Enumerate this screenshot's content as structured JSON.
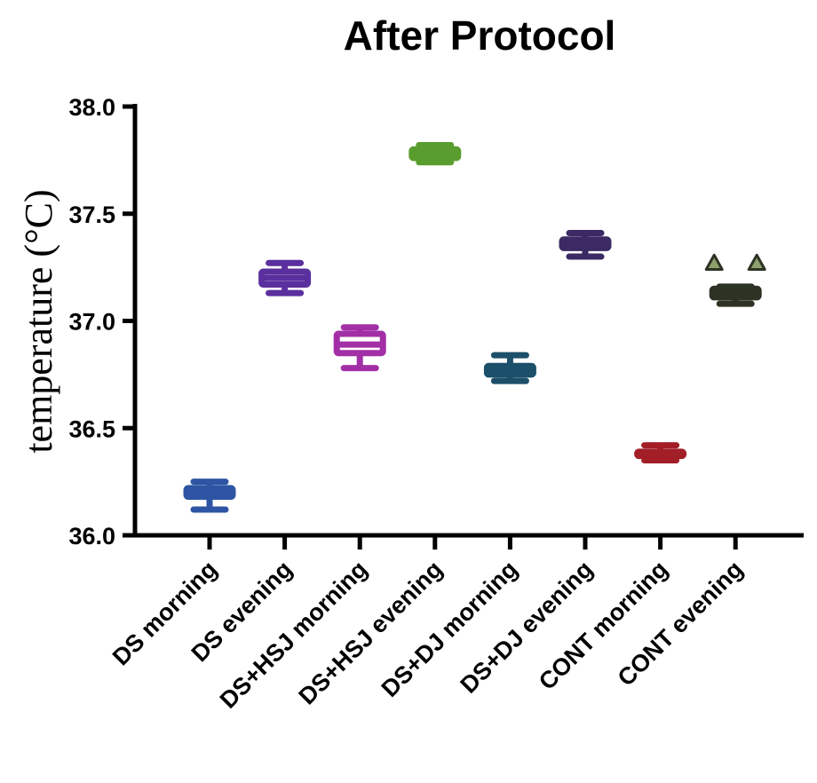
{
  "chart_data": {
    "type": "box",
    "title": "After Protocol",
    "ylabel": "temperature (°C)",
    "xlabel": "",
    "ylim": [
      36.0,
      38.0
    ],
    "yticks": [
      "36.0",
      "36.5",
      "37.0",
      "37.5",
      "38.0"
    ],
    "grid": false,
    "categories": [
      "DS morning",
      "DS evening",
      "DS+HSJ morning",
      "DS+HSJ evening",
      "DS+DJ morning",
      "DS+DJ evening",
      "CONT morning",
      "CONT evening"
    ],
    "boxes": [
      {
        "category": "DS morning",
        "color": "#2e55a3",
        "min": 36.12,
        "q1": 36.18,
        "median": 36.2,
        "q3": 36.22,
        "max": 36.25
      },
      {
        "category": "DS evening",
        "color": "#5a2f9e",
        "min": 37.13,
        "q1": 37.17,
        "median": 37.2,
        "q3": 37.23,
        "max": 37.27
      },
      {
        "category": "DS+HSJ morning",
        "color": "#a22fa6",
        "min": 36.78,
        "q1": 36.85,
        "median": 36.89,
        "q3": 36.94,
        "max": 36.97
      },
      {
        "category": "DS+HSJ evening",
        "color": "#5a9d2f",
        "min": 37.74,
        "q1": 37.76,
        "median": 37.78,
        "q3": 37.8,
        "max": 37.82
      },
      {
        "category": "DS+DJ morning",
        "color": "#1c4f69",
        "min": 36.72,
        "q1": 36.75,
        "median": 36.77,
        "q3": 36.79,
        "max": 36.84
      },
      {
        "category": "DS+DJ evening",
        "color": "#3b2a63",
        "min": 37.3,
        "q1": 37.34,
        "median": 37.36,
        "q3": 37.38,
        "max": 37.41
      },
      {
        "category": "CONT morning",
        "color": "#a31f27",
        "min": 36.35,
        "q1": 36.37,
        "median": 36.38,
        "q3": 36.39,
        "max": 36.42
      },
      {
        "category": "CONT evening",
        "color": "#2d3324",
        "min": 37.08,
        "q1": 37.11,
        "median": 37.13,
        "q3": 37.15,
        "max": 37.16
      }
    ],
    "outliers": [
      {
        "category": "CONT evening",
        "y": 37.27,
        "offset": -1,
        "marker": "triangle",
        "color": "#8fa06c"
      },
      {
        "category": "CONT evening",
        "y": 37.27,
        "offset": 1,
        "marker": "triangle",
        "color": "#8fa06c"
      }
    ]
  }
}
